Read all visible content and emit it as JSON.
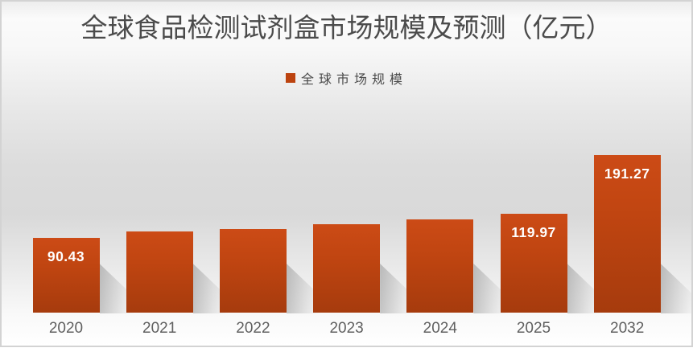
{
  "chart": {
    "title": "全球食品检测试剂盒市场规模及预测（亿元）",
    "legend": {
      "label": "全球市场规模"
    }
  },
  "colors": {
    "bar_gradient_top": "#CC4B16",
    "bar_gradient_bottom": "#A63B0D",
    "legend_swatch": "#BC430F",
    "title_text": "#4B4B4B",
    "axis_label_text": "#606060",
    "data_label_text": "#FFFFFF",
    "border": "#D3D3D3"
  },
  "chart_data": {
    "type": "bar",
    "title": "全球食品检测试剂盒市场规模及预测（亿元）",
    "value_unit": "亿元",
    "categories": [
      "2020",
      "2021",
      "2022",
      "2023",
      "2024",
      "2025",
      "2032"
    ],
    "series": [
      {
        "name": "全球市场规模",
        "values": [
          90.43,
          98.4,
          101.5,
          107.3,
          113.3,
          119.97,
          191.27
        ]
      }
    ],
    "value_labels": [
      "90.43",
      "",
      "",
      "",
      "",
      "119.97",
      "191.27"
    ],
    "ylim": [
      0,
      200
    ],
    "grid": false,
    "legend_position": "top",
    "bar_color": "#BC430F"
  }
}
